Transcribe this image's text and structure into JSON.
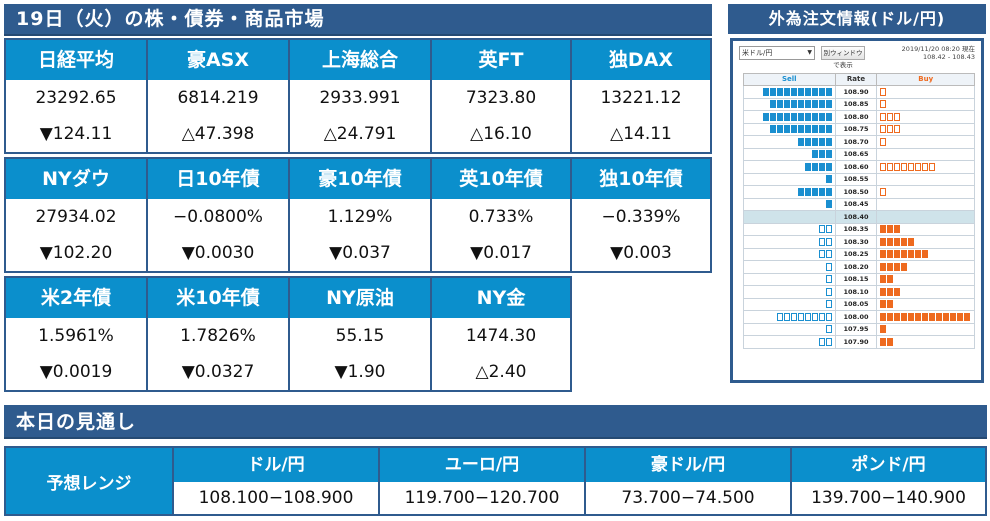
{
  "markets": {
    "header": "19日（火）の株・債券・商品市場",
    "rows": [
      {
        "cells": [
          {
            "name": "日経平均",
            "value": "23292.65",
            "change": "▼124.11"
          },
          {
            "name": "豪ASX",
            "value": "6814.219",
            "change": "△47.398"
          },
          {
            "name": "上海総合",
            "value": "2933.991",
            "change": "△24.791"
          },
          {
            "name": "英FT",
            "value": "7323.80",
            "change": "△16.10"
          },
          {
            "name": "独DAX",
            "value": "13221.12",
            "change": "△14.11"
          }
        ]
      },
      {
        "cells": [
          {
            "name": "NYダウ",
            "value": "27934.02",
            "change": "▼102.20"
          },
          {
            "name": "日10年債",
            "value": "−0.0800%",
            "change": "▼0.0030"
          },
          {
            "name": "豪10年債",
            "value": "1.129%",
            "change": "▼0.037"
          },
          {
            "name": "英10年債",
            "value": "0.733%",
            "change": "▼0.017"
          },
          {
            "name": "独10年債",
            "value": "−0.339%",
            "change": "▼0.003"
          }
        ]
      },
      {
        "cells": [
          {
            "name": "米2年債",
            "value": "1.5961%",
            "change": "▼0.0019"
          },
          {
            "name": "米10年債",
            "value": "1.7826%",
            "change": "▼0.0327"
          },
          {
            "name": "NY原油",
            "value": "55.15",
            "change": "▼1.90"
          },
          {
            "name": "NY金",
            "value": "1474.30",
            "change": "△2.40"
          }
        ]
      }
    ]
  },
  "forecast": {
    "header": "本日の見通し",
    "row_label": "予想レンジ",
    "columns": [
      {
        "name": "ドル/円",
        "range": "108.100−108.900"
      },
      {
        "name": "ユーロ/円",
        "range": "119.700−120.700"
      },
      {
        "name": "豪ドル/円",
        "range": "73.700−74.500"
      },
      {
        "name": "ポンド/円",
        "range": "139.700−140.900"
      }
    ]
  },
  "orderbook": {
    "title": "外為注文情報(ドル/円)",
    "pair_select": "米ドル/円",
    "new_window_button": "別ウィンドウで表示",
    "timestamp": "2019/11/20 08:20 現在",
    "range": "108.42 - 108.43",
    "columns": {
      "sell": "Sell",
      "rate": "Rate",
      "buy": "Buy"
    },
    "colors": {
      "sell": "#1a8fd0",
      "buy": "#ee6a1f",
      "current_row": "#cfe3ea"
    },
    "rows": [
      {
        "rate": "108.90",
        "sell": 10,
        "sell_outline": 0,
        "buy": 0,
        "buy_outline": 1
      },
      {
        "rate": "108.85",
        "sell": 9,
        "sell_outline": 0,
        "buy": 0,
        "buy_outline": 1
      },
      {
        "rate": "108.80",
        "sell": 10,
        "sell_outline": 0,
        "buy": 0,
        "buy_outline": 3
      },
      {
        "rate": "108.75",
        "sell": 9,
        "sell_outline": 0,
        "buy": 0,
        "buy_outline": 3
      },
      {
        "rate": "108.70",
        "sell": 5,
        "sell_outline": 0,
        "buy": 0,
        "buy_outline": 1
      },
      {
        "rate": "108.65",
        "sell": 3,
        "sell_outline": 0,
        "buy": 0,
        "buy_outline": 0
      },
      {
        "rate": "108.60",
        "sell": 4,
        "sell_outline": 0,
        "buy": 0,
        "buy_outline": 8
      },
      {
        "rate": "108.55",
        "sell": 1,
        "sell_outline": 0,
        "buy": 0,
        "buy_outline": 0
      },
      {
        "rate": "108.50",
        "sell": 5,
        "sell_outline": 0,
        "buy": 0,
        "buy_outline": 1
      },
      {
        "rate": "108.45",
        "sell": 1,
        "sell_outline": 0,
        "buy": 0,
        "buy_outline": 0
      },
      {
        "rate": "108.40",
        "sell": 0,
        "sell_outline": 0,
        "buy": 0,
        "buy_outline": 0,
        "current": true
      },
      {
        "rate": "108.35",
        "sell": 0,
        "sell_outline": 2,
        "buy": 3,
        "buy_outline": 0
      },
      {
        "rate": "108.30",
        "sell": 0,
        "sell_outline": 2,
        "buy": 5,
        "buy_outline": 0
      },
      {
        "rate": "108.25",
        "sell": 0,
        "sell_outline": 2,
        "buy": 7,
        "buy_outline": 0
      },
      {
        "rate": "108.20",
        "sell": 0,
        "sell_outline": 1,
        "buy": 4,
        "buy_outline": 0
      },
      {
        "rate": "108.15",
        "sell": 0,
        "sell_outline": 1,
        "buy": 2,
        "buy_outline": 0
      },
      {
        "rate": "108.10",
        "sell": 0,
        "sell_outline": 1,
        "buy": 3,
        "buy_outline": 0
      },
      {
        "rate": "108.05",
        "sell": 0,
        "sell_outline": 1,
        "buy": 2,
        "buy_outline": 0
      },
      {
        "rate": "108.00",
        "sell": 0,
        "sell_outline": 8,
        "buy": 13,
        "buy_outline": 0
      },
      {
        "rate": "107.95",
        "sell": 0,
        "sell_outline": 1,
        "buy": 1,
        "buy_outline": 0
      },
      {
        "rate": "107.90",
        "sell": 0,
        "sell_outline": 2,
        "buy": 2,
        "buy_outline": 0
      }
    ]
  }
}
